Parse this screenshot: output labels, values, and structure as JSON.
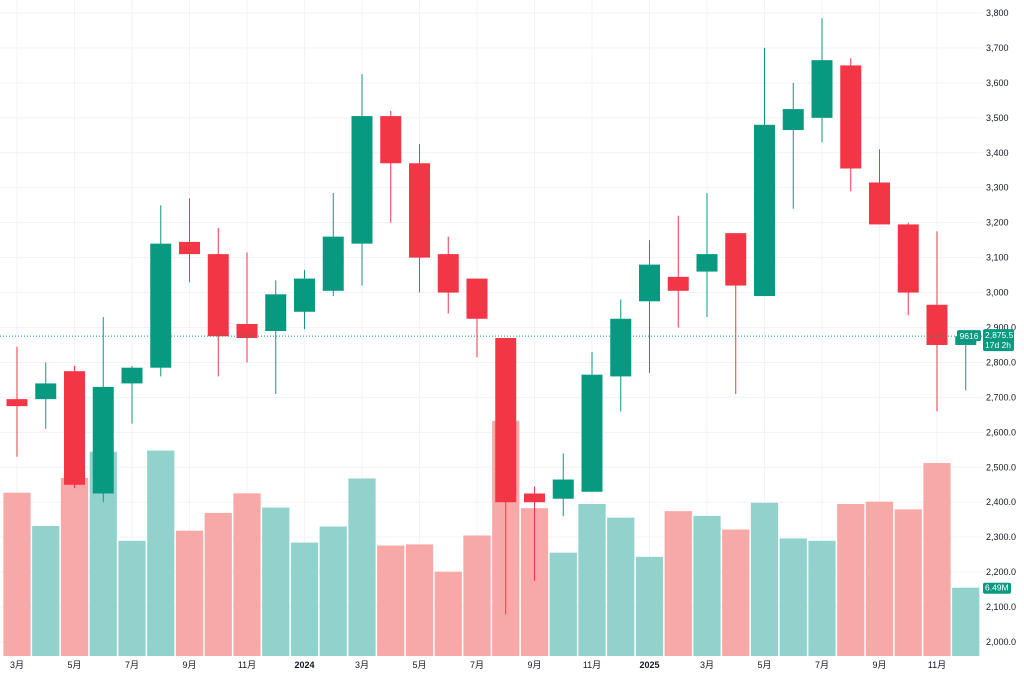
{
  "chart_data": {
    "type": "candlestick",
    "interval": "monthly",
    "colors": {
      "up": "#089981",
      "down": "#f23645",
      "up_volume": "#92d2cc",
      "down_volume": "#f7a9a7",
      "grid": "#f0f3fa",
      "price_line": "#089981"
    },
    "price_axis": {
      "min": 1960,
      "max": 3820,
      "ticks": [
        2000,
        2100,
        2200,
        2300,
        2400,
        2500,
        2600,
        2700,
        2800,
        2900,
        3000,
        3100,
        3200,
        3300,
        3400,
        3500,
        3600,
        3700,
        3800
      ],
      "tick_labels": [
        "2,000.0",
        "2,100.0",
        "2,200.0",
        "2,300.0",
        "2,400.0",
        "2,500.0",
        "2,600.0",
        "2,700.0",
        "2,800.0",
        "2,900.0",
        "3,000",
        "3,100",
        "3,200",
        "3,300",
        "3,400",
        "3,500",
        "3,600",
        "3,700",
        "3,800"
      ]
    },
    "time_axis": [
      {
        "label": "3月",
        "index": 0,
        "bold": false
      },
      {
        "label": "5月",
        "index": 2,
        "bold": false
      },
      {
        "label": "7月",
        "index": 4,
        "bold": false
      },
      {
        "label": "9月",
        "index": 6,
        "bold": false
      },
      {
        "label": "11月",
        "index": 8,
        "bold": false
      },
      {
        "label": "2024",
        "index": 10,
        "bold": true
      },
      {
        "label": "3月",
        "index": 12,
        "bold": false
      },
      {
        "label": "5月",
        "index": 14,
        "bold": false
      },
      {
        "label": "7月",
        "index": 16,
        "bold": false
      },
      {
        "label": "9月",
        "index": 18,
        "bold": false
      },
      {
        "label": "11月",
        "index": 20,
        "bold": false
      },
      {
        "label": "2025",
        "index": 22,
        "bold": true
      },
      {
        "label": "3月",
        "index": 24,
        "bold": false
      },
      {
        "label": "5月",
        "index": 26,
        "bold": false
      },
      {
        "label": "7月",
        "index": 28,
        "bold": false
      },
      {
        "label": "9月",
        "index": 30,
        "bold": false
      },
      {
        "label": "11月",
        "index": 32,
        "bold": false
      }
    ],
    "candles": [
      {
        "o": 2695,
        "h": 2845,
        "l": 2530,
        "c": 2675
      },
      {
        "o": 2695,
        "h": 2800,
        "l": 2610,
        "c": 2740
      },
      {
        "o": 2775,
        "h": 2790,
        "l": 2440,
        "c": 2450
      },
      {
        "o": 2425,
        "h": 2930,
        "l": 2400,
        "c": 2730
      },
      {
        "o": 2740,
        "h": 2790,
        "l": 2625,
        "c": 2785
      },
      {
        "o": 2785,
        "h": 3250,
        "l": 2760,
        "c": 3140
      },
      {
        "o": 3145,
        "h": 3270,
        "l": 3030,
        "c": 3110
      },
      {
        "o": 3110,
        "h": 3185,
        "l": 2760,
        "c": 2875
      },
      {
        "o": 2910,
        "h": 3115,
        "l": 2800,
        "c": 2870
      },
      {
        "o": 2890,
        "h": 3035,
        "l": 2710,
        "c": 2995
      },
      {
        "o": 2945,
        "h": 3065,
        "l": 2895,
        "c": 3040
      },
      {
        "o": 3005,
        "h": 3285,
        "l": 2990,
        "c": 3160
      },
      {
        "o": 3140,
        "h": 3625,
        "l": 3020,
        "c": 3505
      },
      {
        "o": 3505,
        "h": 3520,
        "l": 3200,
        "c": 3370
      },
      {
        "o": 3370,
        "h": 3425,
        "l": 3000,
        "c": 3100
      },
      {
        "o": 3110,
        "h": 3160,
        "l": 2940,
        "c": 3000
      },
      {
        "o": 3040,
        "h": 3040,
        "l": 2815,
        "c": 2925
      },
      {
        "o": 2870,
        "h": 2870,
        "l": 2080,
        "c": 2400
      },
      {
        "o": 2425,
        "h": 2445,
        "l": 2175,
        "c": 2400
      },
      {
        "o": 2410,
        "h": 2540,
        "l": 2360,
        "c": 2465
      },
      {
        "o": 2430,
        "h": 2830,
        "l": 2430,
        "c": 2765
      },
      {
        "o": 2760,
        "h": 2980,
        "l": 2660,
        "c": 2925
      },
      {
        "o": 2975,
        "h": 3150,
        "l": 2770,
        "c": 3080
      },
      {
        "o": 3045,
        "h": 3220,
        "l": 2900,
        "c": 3005
      },
      {
        "o": 3060,
        "h": 3285,
        "l": 2930,
        "c": 3110
      },
      {
        "o": 3170,
        "h": 3170,
        "l": 2710,
        "c": 3020
      },
      {
        "o": 2990,
        "h": 3700,
        "l": 2990,
        "c": 3480
      },
      {
        "o": 3465,
        "h": 3600,
        "l": 3240,
        "c": 3525
      },
      {
        "o": 3500,
        "h": 3785,
        "l": 3430,
        "c": 3665
      },
      {
        "o": 3650,
        "h": 3670,
        "l": 3290,
        "c": 3355
      },
      {
        "o": 3315,
        "h": 3410,
        "l": 3195,
        "c": 3195
      },
      {
        "o": 3195,
        "h": 3200,
        "l": 2935,
        "c": 3000
      },
      {
        "o": 2965,
        "h": 3175,
        "l": 2660,
        "c": 2850
      },
      {
        "o": 2850,
        "h": 2880,
        "l": 2720,
        "c": 2875
      }
    ],
    "volume_axis_max": 3.2,
    "volumes": [
      2.75,
      2.19,
      3.0,
      3.44,
      1.94,
      3.46,
      2.11,
      2.41,
      2.74,
      2.5,
      1.91,
      2.18,
      2.99,
      1.86,
      1.88,
      1.42,
      2.03,
      3.96,
      2.49,
      1.74,
      2.56,
      2.33,
      1.67,
      2.44,
      2.36,
      2.13,
      2.58,
      1.98,
      1.94,
      2.56,
      2.6,
      2.47,
      3.25,
      1.15
    ],
    "last_price": {
      "symbol_value": "9616",
      "price": 2875.5,
      "price_label": "2,875.5",
      "countdown": "17d 2h"
    },
    "last_volume": {
      "label": "6.49M"
    }
  }
}
